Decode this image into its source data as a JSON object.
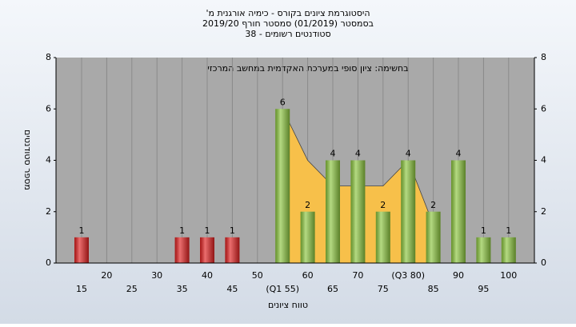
{
  "chart_data": {
    "type": "bar",
    "title": "היסטוגרמת ציונים בקורס - כימיה אורגנית מ'",
    "subtitle": "בסמסטר (01/2019) סמסטר חורף 2019/20",
    "subtitle2": "סטודנטים רשומים - 38",
    "annotation": "בחשימה: ציון סופי במערכת האקדמית במחשב המרכזי",
    "x_label": "טווח ציונים",
    "y_label": "מספר סטודנטים",
    "categories": [
      "15",
      "20",
      "25",
      "30",
      "35",
      "40",
      "45",
      "50",
      "(Q1 55)",
      "60",
      "65",
      "70",
      "75",
      "(Q3 80)",
      "85",
      "90",
      "95",
      "100"
    ],
    "values": [
      1,
      0,
      0,
      0,
      1,
      1,
      1,
      0,
      6,
      2,
      4,
      4,
      2,
      4,
      2,
      4,
      1,
      1
    ],
    "colors": [
      "#e02020",
      "#e02020",
      "#e02020",
      "#e02020",
      "#e02020",
      "#e02020",
      "#e02020",
      "#e02020",
      "#8cc63f",
      "#8cc63f",
      "#8cc63f",
      "#8cc63f",
      "#8cc63f",
      "#8cc63f",
      "#8cc63f",
      "#8cc63f",
      "#8cc63f",
      "#8cc63f"
    ],
    "area": {
      "color": "#f7c04a",
      "values": [
        null,
        null,
        null,
        null,
        null,
        null,
        null,
        null,
        6,
        4,
        3,
        3,
        3,
        4,
        1.5,
        null,
        null,
        null
      ]
    },
    "ylim": [
      0,
      8
    ],
    "yticks": [
      0,
      2,
      4,
      6,
      8
    ],
    "y2lim": [
      0,
      8
    ],
    "y2ticks": [
      0,
      2,
      4,
      6,
      8
    ],
    "grid": true
  }
}
